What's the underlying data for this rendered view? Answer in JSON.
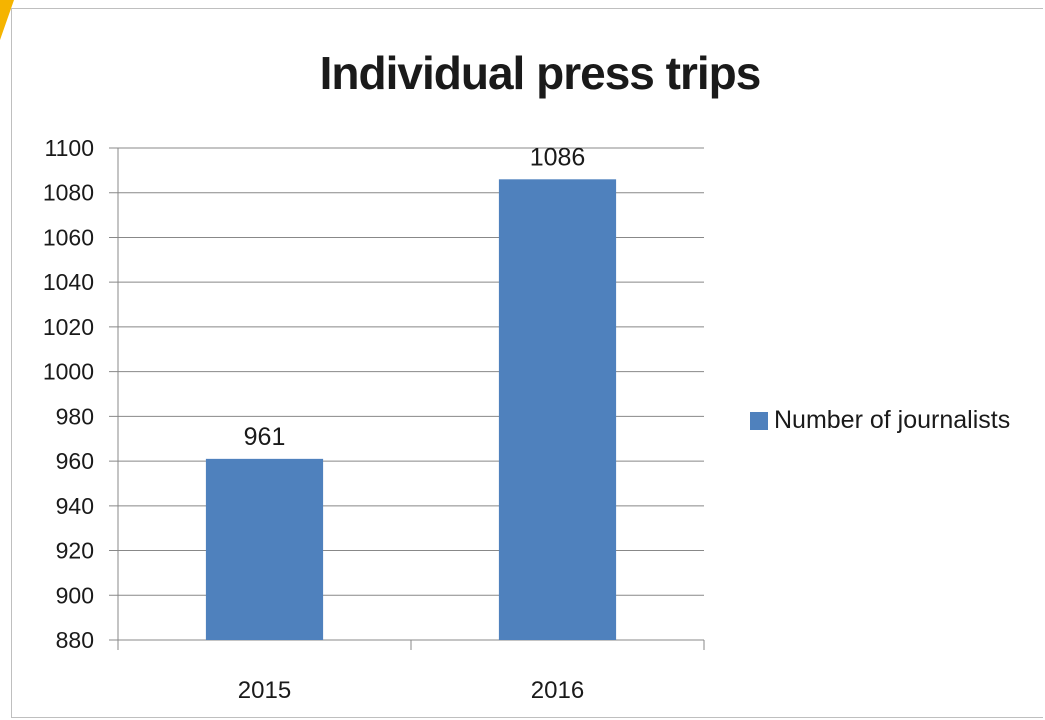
{
  "chart_data": {
    "type": "bar",
    "title": "Individual press trips",
    "categories": [
      "2015",
      "2016"
    ],
    "series": [
      {
        "name": "Number of journalists",
        "values": [
          961,
          1086
        ],
        "color": "#4f81bd"
      }
    ],
    "data_labels": [
      "961",
      "1086"
    ],
    "ylim": [
      880,
      1100
    ],
    "ytick_step": 20,
    "yticks": [
      "880",
      "900",
      "920",
      "940",
      "960",
      "980",
      "1000",
      "1020",
      "1040",
      "1060",
      "1080",
      "1100"
    ],
    "grid": true,
    "legend_position": "right",
    "xlabel": "",
    "ylabel": ""
  },
  "colors": {
    "bar": "#4f81bd",
    "grid": "#888888",
    "accent": "#f5b400"
  }
}
